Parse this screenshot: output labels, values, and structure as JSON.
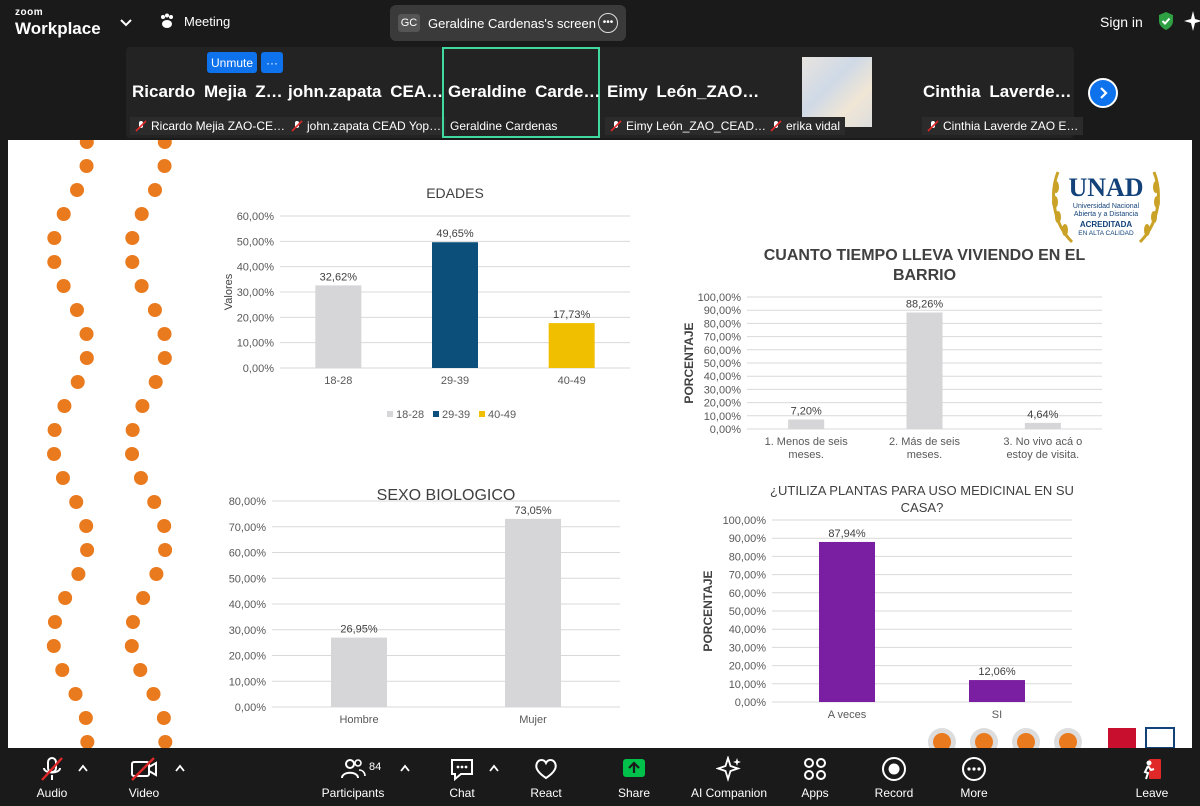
{
  "app": {
    "brand_small": "zoom",
    "brand_large": "Workplace",
    "meeting_label": "Meeting",
    "screen_initials": "GC",
    "screen_label": "Geraldine Cardenas's screen",
    "signin_label": "Sign in"
  },
  "participants": [
    {
      "display": "Ricardo  Mejia  Z…",
      "footer": "Ricardo Mejia ZAO-CE…",
      "muted": true
    },
    {
      "display": "john.zapata  CEA…",
      "footer": "john.zapata CEAD Yop…",
      "muted": true
    },
    {
      "display": "Geraldine  Carde…",
      "footer": "Geraldine Cardenas",
      "muted": false
    },
    {
      "display": "Eimy  León_ZAO…",
      "footer": "Eimy León_ZAO_CEAD…",
      "muted": true
    },
    {
      "display": "",
      "footer": "erika vidal",
      "muted": true
    },
    {
      "display": "Cinthia  Laverde…",
      "footer": "Cinthia Laverde ZAO E…",
      "muted": true
    }
  ],
  "hover_controls": {
    "unmute_label": "Unmute",
    "more_label": "···"
  },
  "slide": {
    "logo": {
      "name": "UNAD",
      "line1": "Universidad Nacional",
      "line2": "Abierta y a Distancia",
      "line3": "ACREDITADA",
      "line4": "EN ALTA CALIDAD"
    }
  },
  "chart_data": [
    {
      "type": "bar",
      "title": "EDADES",
      "categories": [
        "18-28",
        "29-39",
        "40-49"
      ],
      "values": [
        32.62,
        49.65,
        17.73
      ],
      "value_labels": [
        "32,62%",
        "49,65%",
        "17,73%"
      ],
      "colors": [
        "#d6d5d7",
        "#0b4f7a",
        "#f0bf00"
      ],
      "ylabel": "Valores",
      "ylim": [
        0,
        60
      ],
      "ticks": [
        "0,00%",
        "10,00%",
        "20,00%",
        "30,00%",
        "40,00%",
        "50,00%",
        "60,00%"
      ],
      "legend": [
        "18-28",
        "29-39",
        "40-49"
      ],
      "legend_position": "bottom",
      "grid": true
    },
    {
      "type": "bar",
      "title": "CUANTO TIEMPO LLEVA VIVIENDO EN EL BARRIO",
      "categories": [
        "1. Menos de seis meses.",
        "2. Más de seis meses.",
        "3. No vivo acá o estoy de visita."
      ],
      "values": [
        7.2,
        88.26,
        4.64
      ],
      "value_labels": [
        "7,20%",
        "88,26%",
        "4,64%"
      ],
      "colors": [
        "#d6d5d7",
        "#d6d5d7",
        "#d6d5d7"
      ],
      "ylabel": "PORCENTAJE",
      "ylim": [
        0,
        100
      ],
      "ticks": [
        "0,00%",
        "10,00%",
        "20,00%",
        "30,00%",
        "40,00%",
        "50,00%",
        "60,00%",
        "70,00%",
        "80,00%",
        "90,00%",
        "100,00%"
      ],
      "grid": true
    },
    {
      "type": "bar",
      "title": "SEXO BIOLOGICO",
      "categories": [
        "Hombre",
        "Mujer"
      ],
      "values": [
        26.95,
        73.05
      ],
      "value_labels": [
        "26,95%",
        "73,05%"
      ],
      "colors": [
        "#d6d5d7",
        "#d6d5d7"
      ],
      "ylim": [
        0,
        80
      ],
      "ticks": [
        "0,00%",
        "10,00%",
        "20,00%",
        "30,00%",
        "40,00%",
        "50,00%",
        "60,00%",
        "70,00%",
        "80,00%"
      ],
      "grid": true
    },
    {
      "type": "bar",
      "title": "¿UTILIZA PLANTAS PARA USO MEDICINAL EN SU CASA?",
      "categories": [
        "A veces",
        "SI"
      ],
      "values": [
        87.94,
        12.06
      ],
      "value_labels": [
        "87,94%",
        "12,06%"
      ],
      "colors": [
        "#7a1fa2",
        "#7a1fa2"
      ],
      "ylabel": "PORCENTAJE",
      "ylim": [
        0,
        100
      ],
      "ticks": [
        "0,00%",
        "10,00%",
        "20,00%",
        "30,00%",
        "40,00%",
        "50,00%",
        "60,00%",
        "70,00%",
        "80,00%",
        "90,00%",
        "100,00%"
      ],
      "grid": true
    }
  ],
  "toolbar": {
    "audio": "Audio",
    "video": "Video",
    "participants": "Participants",
    "participant_count": "84",
    "chat": "Chat",
    "react": "React",
    "share": "Share",
    "ai_companion": "AI Companion",
    "apps": "Apps",
    "record": "Record",
    "more": "More",
    "leave": "Leave"
  },
  "colors": {
    "accent": "#0e72ed",
    "share_green": "#00c24a",
    "active_border": "#40d9a0",
    "leave_red": "#e02828",
    "dots_orange": "#e97a1e"
  }
}
